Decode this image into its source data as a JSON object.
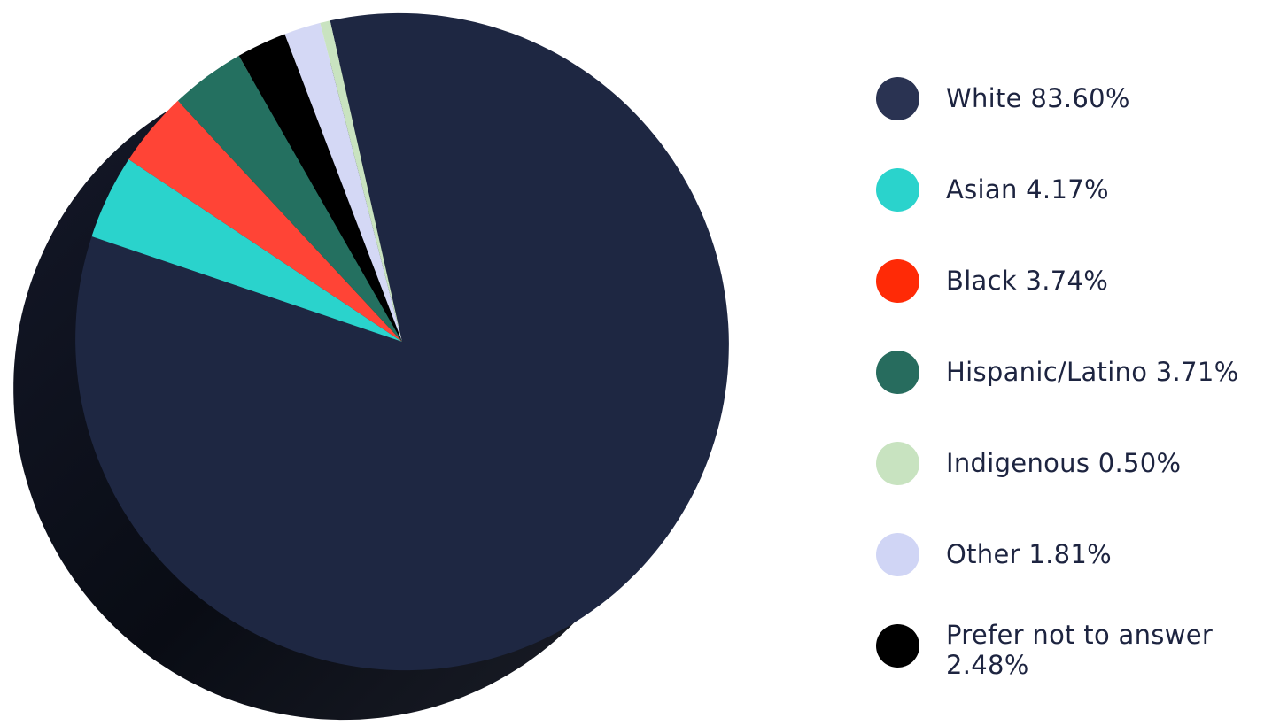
{
  "chart_data": {
    "type": "pie",
    "title": "",
    "slices": [
      {
        "label": "White",
        "value": 83.6,
        "color": "#1e2742",
        "legend_color": "#2a3352",
        "legend_text": "White 83.60%"
      },
      {
        "label": "Asian",
        "value": 4.17,
        "color": "#2ad3cc",
        "legend_color": "#2ad3cc",
        "legend_text": "Asian 4.17%"
      },
      {
        "label": "Black",
        "value": 3.74,
        "color": "#ff4436",
        "legend_color": "#ff2a06",
        "legend_text": "Black 3.74%"
      },
      {
        "label": "Hispanic/Latino",
        "value": 3.71,
        "color": "#247060",
        "legend_color": "#276c5e",
        "legend_text": "Hispanic/Latino 3.71%"
      },
      {
        "label": "Prefer not to answer",
        "value": 2.48,
        "color": "#000000",
        "legend_color": "#000000",
        "legend_text": "Prefer not to answer 2.48%"
      },
      {
        "label": "Other",
        "value": 1.81,
        "color": "#d4d8f5",
        "legend_color": "#d0d5f5",
        "legend_text": "Other 1.81%"
      },
      {
        "label": "Indigenous",
        "value": 0.5,
        "color": "#c9e3c0",
        "legend_color": "#c8e3c0",
        "legend_text": "Indigenous 0.50%"
      }
    ],
    "legend_placement": "right",
    "legend_order": [
      "White",
      "Asian",
      "Black",
      "Hispanic/Latino",
      "Indigenous",
      "Other",
      "Prefer not to answer"
    ],
    "style": "3d-tilted"
  }
}
